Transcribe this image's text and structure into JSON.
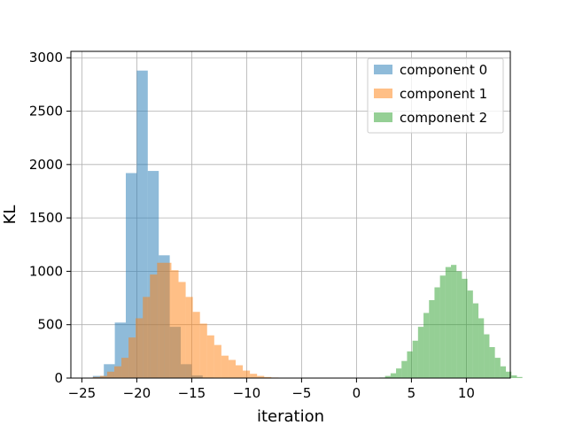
{
  "chart_data": {
    "type": "histogram",
    "xlabel": "iteration",
    "ylabel": "KL",
    "xlim": [
      -26,
      14
    ],
    "ylim": [
      0,
      3060
    ],
    "xticks": [
      -25,
      -20,
      -15,
      -10,
      -5,
      0,
      5,
      10
    ],
    "xtick_labels": [
      "−25",
      "−20",
      "−15",
      "−10",
      "−5",
      "0",
      "5",
      "10"
    ],
    "yticks": [
      0,
      500,
      1000,
      1500,
      2000,
      2500,
      3000
    ],
    "ytick_labels": [
      "0",
      "500",
      "1000",
      "1500",
      "2000",
      "2500",
      "3000"
    ],
    "grid": true,
    "legend_position": "top-right",
    "bar_opacity": 0.5,
    "series": [
      {
        "name": "component 0",
        "color": "#1f77b4",
        "bin_start": -24,
        "bin_width": 1,
        "counts": [
          20,
          130,
          520,
          1920,
          2880,
          1940,
          1150,
          480,
          130,
          25,
          5
        ]
      },
      {
        "name": "component 1",
        "color": "#ff7f0e",
        "bin_start": -24,
        "bin_width": 0.65,
        "counts": [
          10,
          20,
          60,
          110,
          190,
          380,
          560,
          760,
          970,
          1080,
          1080,
          1010,
          900,
          760,
          620,
          510,
          400,
          310,
          210,
          170,
          120,
          70,
          40,
          20,
          10,
          5,
          3,
          2
        ]
      },
      {
        "name": "component 2",
        "color": "#2ca02c",
        "bin_start": 2.1,
        "bin_width": 0.5,
        "counts": [
          5,
          20,
          45,
          90,
          160,
          250,
          350,
          480,
          610,
          730,
          850,
          960,
          1040,
          1060,
          1000,
          930,
          820,
          700,
          560,
          410,
          290,
          190,
          110,
          60,
          25,
          10
        ]
      }
    ]
  }
}
